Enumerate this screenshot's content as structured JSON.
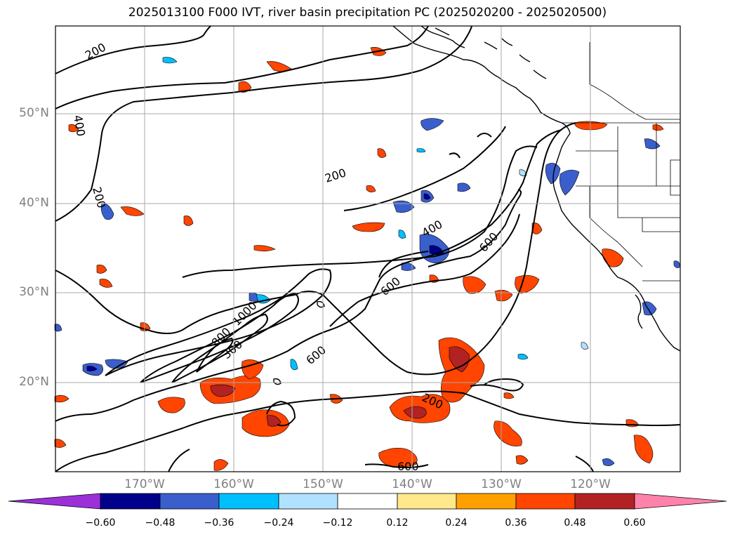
{
  "title": "2025013100 F000 IVT, river basin precipitation PC (2025020200 - 2025020500)",
  "map": {
    "lat_labels": [
      "50°N",
      "40°N",
      "30°N",
      "20°N"
    ],
    "lon_labels": [
      "170°W",
      "160°W",
      "150°W",
      "140°W",
      "130°W",
      "120°W"
    ],
    "contour_labels": [
      "200",
      "400",
      "200",
      "200",
      "400",
      "600",
      "600",
      "1000",
      "800",
      "300",
      "600",
      "200",
      "600"
    ],
    "grid_color": "#a8a8a8",
    "label_color": "#808080"
  },
  "colorbar": {
    "ticks": [
      "−0.60",
      "−0.48",
      "−0.36",
      "−0.24",
      "−0.12",
      "0.12",
      "0.24",
      "0.36",
      "0.48",
      "0.60"
    ],
    "colors": [
      "#9b30d9",
      "#00008b",
      "#3a5fcd",
      "#00bfff",
      "#b0e2ff",
      "#ffffff",
      "#ffe98a",
      "#ff9f00",
      "#ff4500",
      "#b22222",
      "#ff82ab"
    ]
  }
}
